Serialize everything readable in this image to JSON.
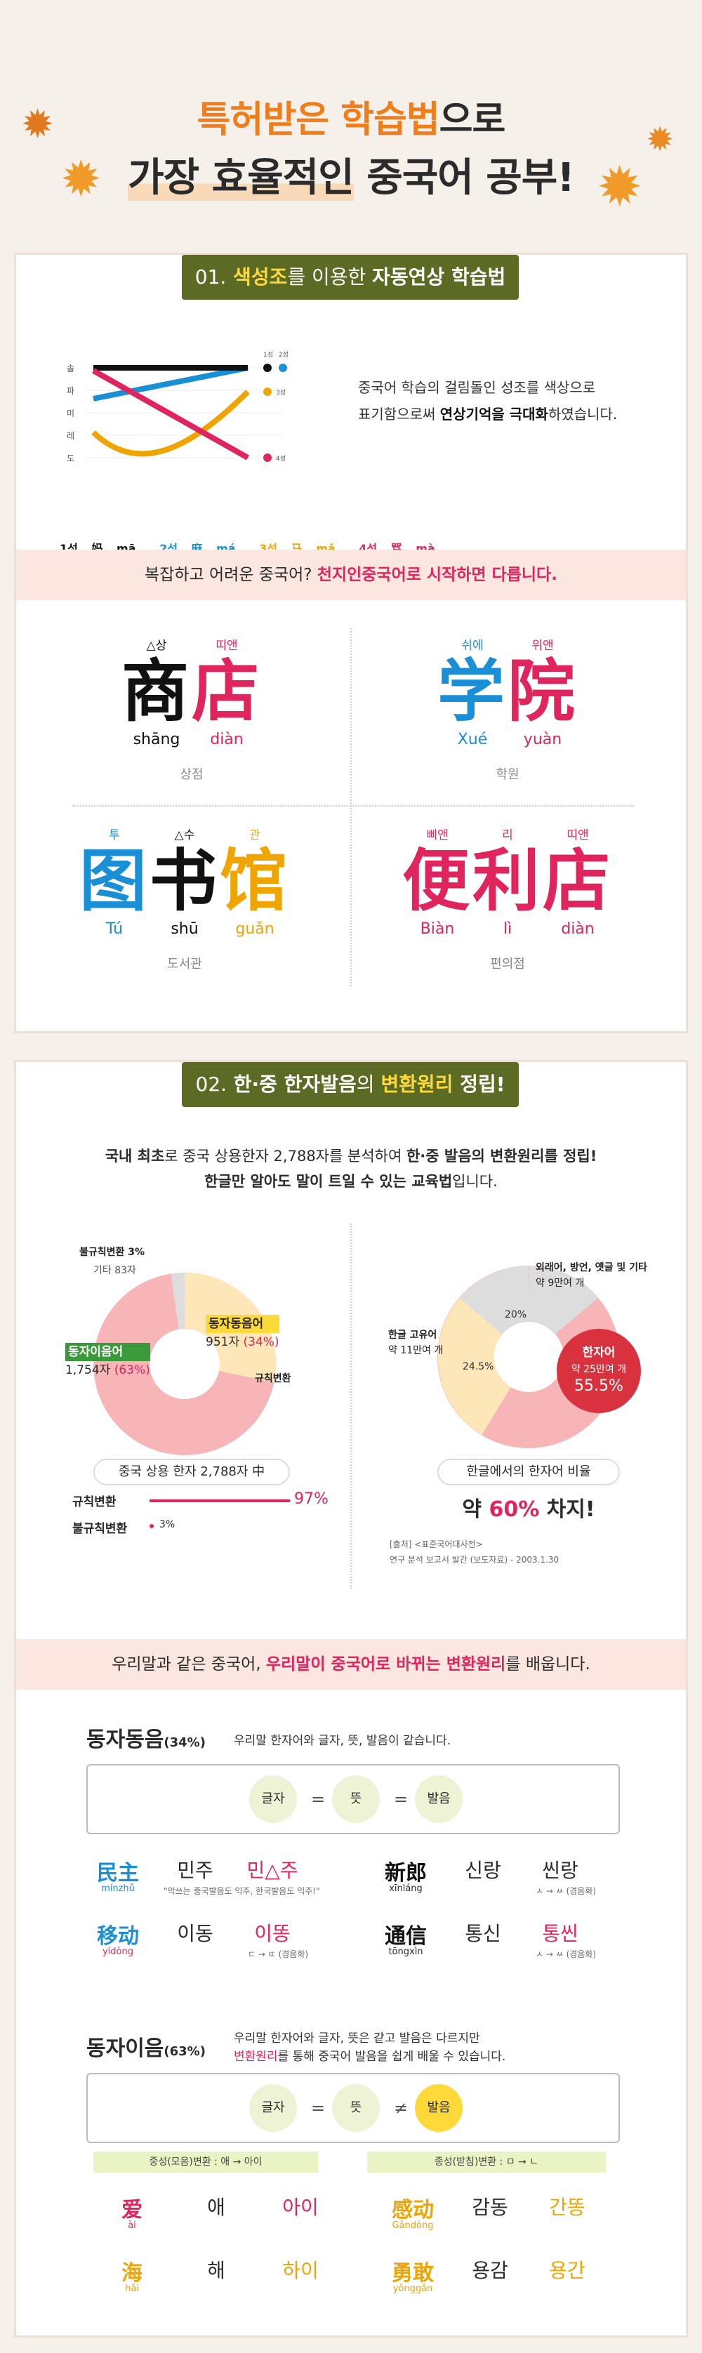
{
  "hero": {
    "line1_highlight": "특허받은 학습법",
    "line1_rest": "으로",
    "line2_highlight": "가장 효율적인",
    "line2_rest": " 중국어 공부!"
  },
  "section1": {
    "num": "01.",
    "title_highlight": "색성조",
    "title_mid": "를 이용한 ",
    "title_bold": "자동연상 학습법",
    "tone_scale": [
      "솔",
      "파",
      "미",
      "레",
      "도"
    ],
    "tone_marks": [
      "1성",
      "2성",
      "3성",
      "4성"
    ],
    "tones": [
      {
        "label": "1성",
        "hanzi": "妈",
        "pinyin": "mā",
        "color": "#111111"
      },
      {
        "label": "2성",
        "hanzi": "麻",
        "pinyin": "má",
        "color": "#1a8fd6"
      },
      {
        "label": "3성",
        "hanzi": "马",
        "pinyin": "mǎ",
        "color": "#f0a400"
      },
      {
        "label": "4성",
        "hanzi": "骂",
        "pinyin": "mà",
        "color": "#e0245e"
      }
    ],
    "intro_line1": "중국어 학습의 걸림돌인 성조를 색상으로",
    "intro_line2a": "표기함으로써 ",
    "intro_line2b": "연상기억을 극대화",
    "intro_line2c": "하였습니다.",
    "band_a": "복잡하고 어려운 중국어? ",
    "band_b": "천지인중국어로 시작하면 다릅니다.",
    "words": [
      {
        "chars": [
          {
            "c": "商",
            "hint": "△상",
            "py": "shāng",
            "color": "black"
          },
          {
            "c": "店",
            "hint": "띠앤",
            "py": "diàn",
            "color": "pink"
          }
        ],
        "kor": "상점"
      },
      {
        "chars": [
          {
            "c": "学",
            "hint": "쉬에",
            "py": "Xué",
            "color": "blue"
          },
          {
            "c": "院",
            "hint": "위앤",
            "py": "yuàn",
            "color": "pink"
          }
        ],
        "kor": "학원"
      },
      {
        "chars": [
          {
            "c": "图",
            "hint": "투",
            "py": "Tú",
            "color": "blue"
          },
          {
            "c": "书",
            "hint": "△수",
            "py": "shū",
            "color": "black"
          },
          {
            "c": "馆",
            "hint": "관",
            "py": "guǎn",
            "color": "gold"
          }
        ],
        "kor": "도서관"
      },
      {
        "chars": [
          {
            "c": "便",
            "hint": "삐앤",
            "py": "Biàn",
            "color": "pink"
          },
          {
            "c": "利",
            "hint": "리",
            "py": "lì",
            "color": "pink"
          },
          {
            "c": "店",
            "hint": "띠앤",
            "py": "diàn",
            "color": "pink"
          }
        ],
        "kor": "편의점"
      }
    ]
  },
  "section2": {
    "num": "02.",
    "title_a": "한·중 한자발음",
    "title_b": "의 ",
    "title_c": "변환원리",
    "title_d": " 정립!",
    "intro1a": "국내 최초",
    "intro1b": "로 중국 상용한자 2,788자를 분석하여 ",
    "intro1c": "한·중 발음의 변환원리를 정립!",
    "intro2a": "한글만 알아도 말이 트일 수 있는 교육법",
    "intro2b": "입니다.",
    "donut1": {
      "label_irregular": "불규칙변환",
      "label_irregular_pct": "3%",
      "label_other": "기타 83자",
      "label_same": "동자동음어",
      "label_same_count": "951자",
      "label_same_pct": "(34%)",
      "label_diff": "동자이음어",
      "label_diff_count": "1,754자",
      "label_diff_pct": "(63%)",
      "label_regular": "규칙변환",
      "caption": "중국 상용 한자 2,788자 中"
    },
    "chart_data": [
      {
        "type": "pie",
        "title": "중국 상용 한자 2,788자 中",
        "categories": [
          "동자이음어",
          "동자동음어",
          "기타"
        ],
        "values": [
          1754,
          951,
          83
        ],
        "percent": [
          63,
          34,
          3
        ]
      },
      {
        "type": "pie",
        "title": "한글에서의 한자어 비율",
        "categories": [
          "한자어",
          "한글 고유어",
          "외래어, 방언, 옛글 및 기타"
        ],
        "values": [
          55.5,
          24.5,
          20
        ]
      },
      {
        "type": "bar",
        "categories": [
          "규칙변환",
          "불규칙변환"
        ],
        "values": [
          97,
          3
        ]
      }
    ],
    "regular_label": "규칙변환",
    "regular_pct": "97%",
    "irregular_label": "불규칙변환",
    "irregular_pct": "3%",
    "donut2": {
      "label_other": "외래어, 방언, 옛글 및 기타",
      "label_other_count": "약 9만여 개",
      "label_other_pct": "20%",
      "label_native": "한글 고유어",
      "label_native_count": "약 11만여 개",
      "label_native_pct": "24.5%",
      "label_hanja": "한자어",
      "label_hanja_count": "약 25만여 개",
      "label_hanja_pct": "55.5%",
      "caption": "한글에서의 한자어 비율"
    },
    "conclusion_a": "약 ",
    "conclusion_b": "60%",
    "conclusion_c": " 차지!",
    "source1": "[출처] <표준국어대사전>",
    "source2": "연구 분석 보고서 발간 (보도자료) - 2003.1.30",
    "band_a": "우리말과 같은 중국어, ",
    "band_b": "우리말이 중국어로 바뀌는 변환원리",
    "band_c": "를 배웁니다."
  },
  "same": {
    "title": "동자동음",
    "pct": "(34%)",
    "desc": "우리말 한자어와 글자, 뜻, 발음이 같습니다.",
    "f1": "글자",
    "f2": "뜻",
    "f3": "발음",
    "eq": "=",
    "rows": [
      [
        {
          "h": "民主",
          "py": "mínzhǔ",
          "k": "민주",
          "c": "민△주",
          "note": "\"악쓰는 중국발음도 익주, 한국발음도 익주!\""
        },
        {
          "h": "新郎",
          "py": "xīnláng",
          "k": "신랑",
          "c": "씬랑",
          "note": "ㅅ → ㅆ (경음화)"
        }
      ],
      [
        {
          "h": "移动",
          "py": "yídòng",
          "k": "이동",
          "c": "이똥",
          "note": "ㄷ → ㄸ (경음화)"
        },
        {
          "h": "通信",
          "py": "tōngxìn",
          "k": "통신",
          "c": "통씬",
          "note": "ㅅ → ㅆ (경음화)"
        }
      ]
    ]
  },
  "diff": {
    "title": "동자이음",
    "pct": "(63%)",
    "desc1": "우리말 한자어와 글자, 뜻은 같고 발음은 다르지만",
    "desc2a": "변환원리",
    "desc2b": "를 통해 중국어 발음을 쉽게 배울 수 있습니다.",
    "f1": "글자",
    "f2": "뜻",
    "f3": "발음",
    "eq": "=",
    "neq": "≠",
    "bar_left": "중성(모음)변환 : 애 → 아이",
    "bar_right": "종성(받침)변환 : ㅁ → ㄴ",
    "rows": [
      [
        {
          "h": "爱",
          "py": "ài",
          "k": "애",
          "c": "아이"
        },
        {
          "h": "感动",
          "py": "Gǎndòng",
          "k": "감동",
          "c": "간똥"
        }
      ],
      [
        {
          "h": "海",
          "py": "hǎi",
          "k": "해",
          "c": "하이"
        },
        {
          "h": "勇敢",
          "py": "yǒnggǎn",
          "k": "용감",
          "c": "용간"
        }
      ]
    ]
  }
}
